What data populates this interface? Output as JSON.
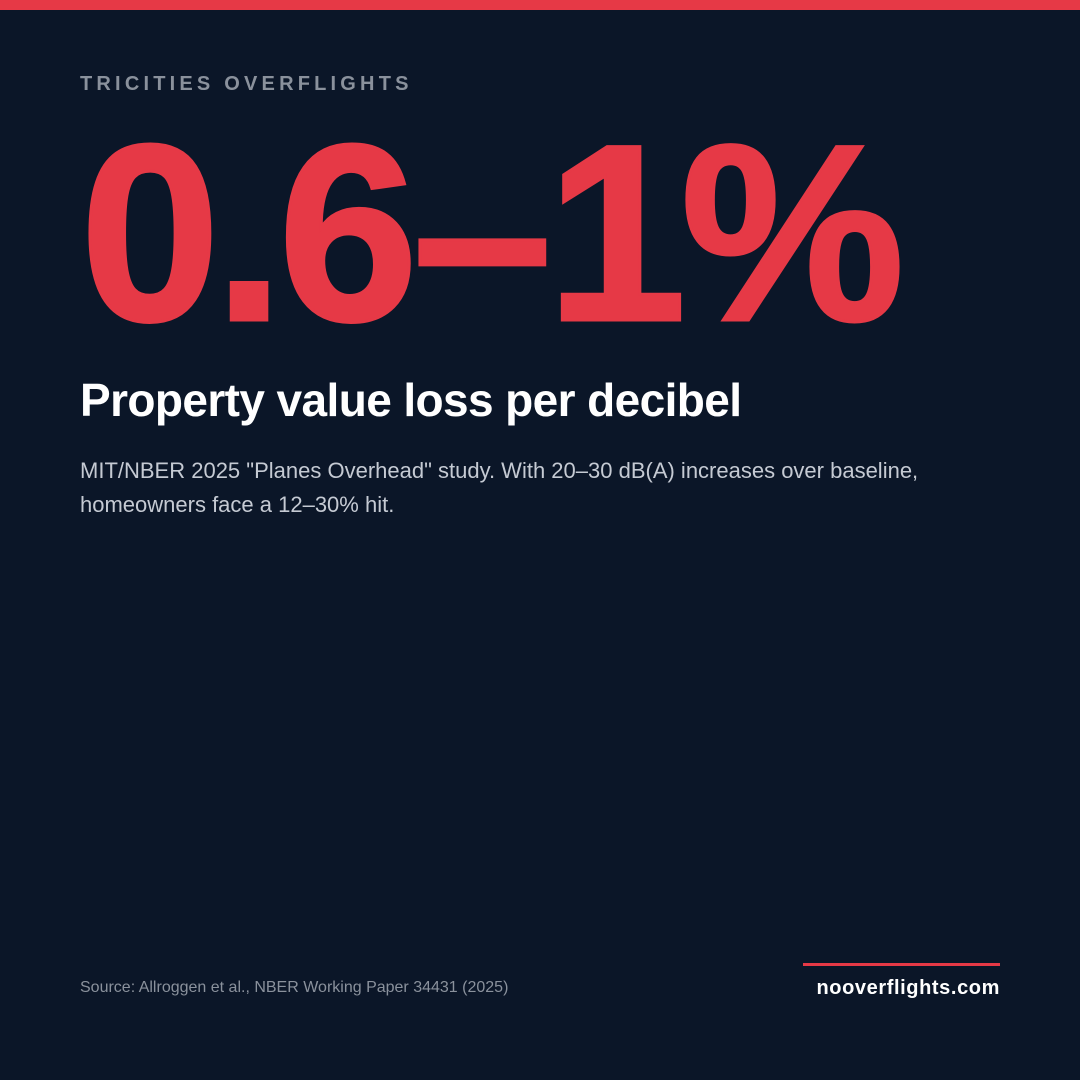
{
  "colors": {
    "background": "#0b1628",
    "accent": "#e63946",
    "kicker": "#8a919c",
    "headline": "#ffffff",
    "body": "#c5cad3",
    "source": "#8a919c"
  },
  "header": {
    "kicker": "TRICITIES OVERFLIGHTS"
  },
  "stat": {
    "value": "0.6–1%",
    "headline": "Property value loss per decibel",
    "description": "MIT/NBER 2025 \"Planes Overhead\" study. With 20–30 dB(A) increases over baseline, homeowners face a 12–30% hit."
  },
  "footer": {
    "source": "Source: Allroggen et al., NBER Working Paper 34431 (2025)",
    "brand": "nooverflights.com"
  }
}
